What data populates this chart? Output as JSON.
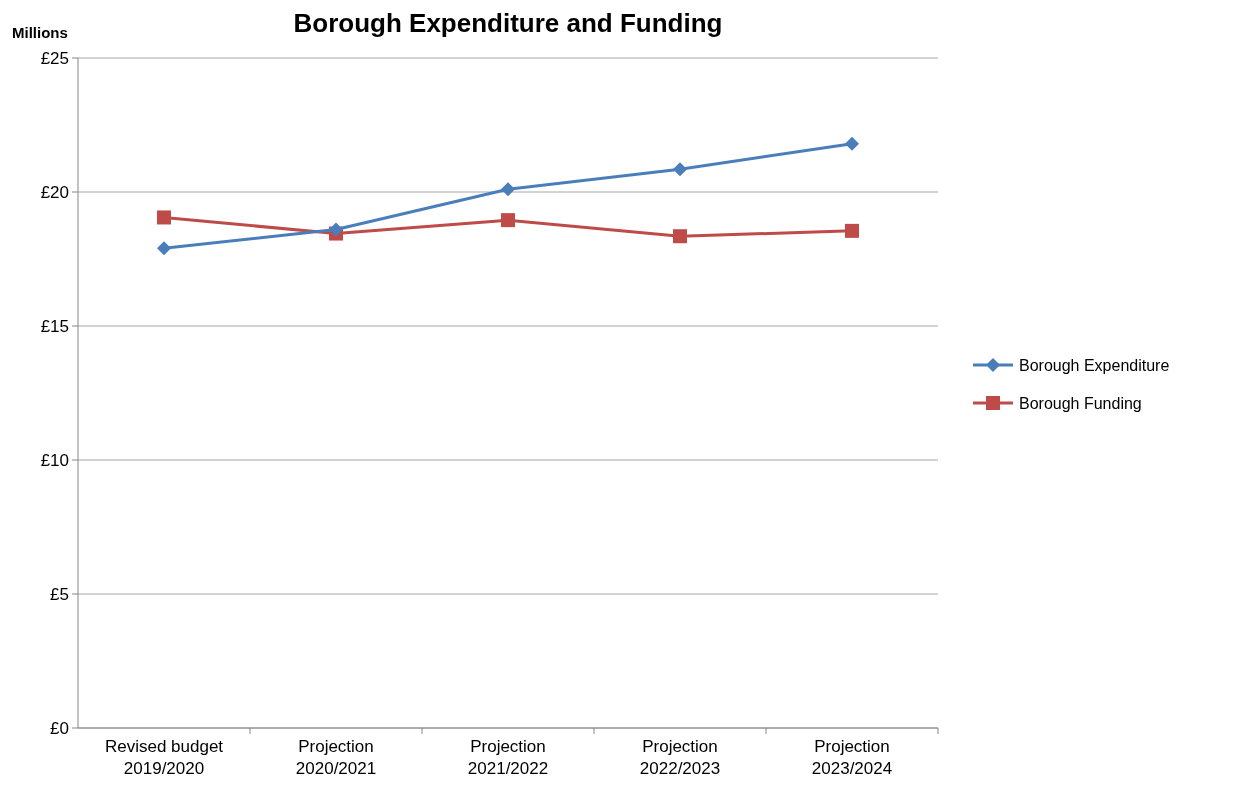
{
  "chart_data": {
    "type": "line",
    "title": "Borough Expenditure and Funding",
    "ylabel": "Millions",
    "categories": [
      "Revised budget\n2019/2020",
      "Projection\n2020/2021",
      "Projection\n2021/2022",
      "Projection\n2022/2023",
      "Projection\n2023/2024"
    ],
    "series": [
      {
        "name": "Borough Expenditure",
        "color": "#4a7ebb",
        "marker": "diamond",
        "values": [
          17.9,
          18.6,
          20.1,
          20.85,
          21.8
        ]
      },
      {
        "name": "Borough Funding",
        "color": "#be4b48",
        "marker": "square",
        "values": [
          19.05,
          18.45,
          18.95,
          18.35,
          18.55
        ]
      }
    ],
    "ylim": [
      0,
      25
    ],
    "yticks": [
      {
        "value": 0,
        "label": "£0"
      },
      {
        "value": 5,
        "label": "£5"
      },
      {
        "value": 10,
        "label": "£10"
      },
      {
        "value": 15,
        "label": "£15"
      },
      {
        "value": 20,
        "label": "£20"
      },
      {
        "value": 25,
        "label": "£25"
      }
    ],
    "grid": "y",
    "legend": "right",
    "line_style": "solid"
  }
}
